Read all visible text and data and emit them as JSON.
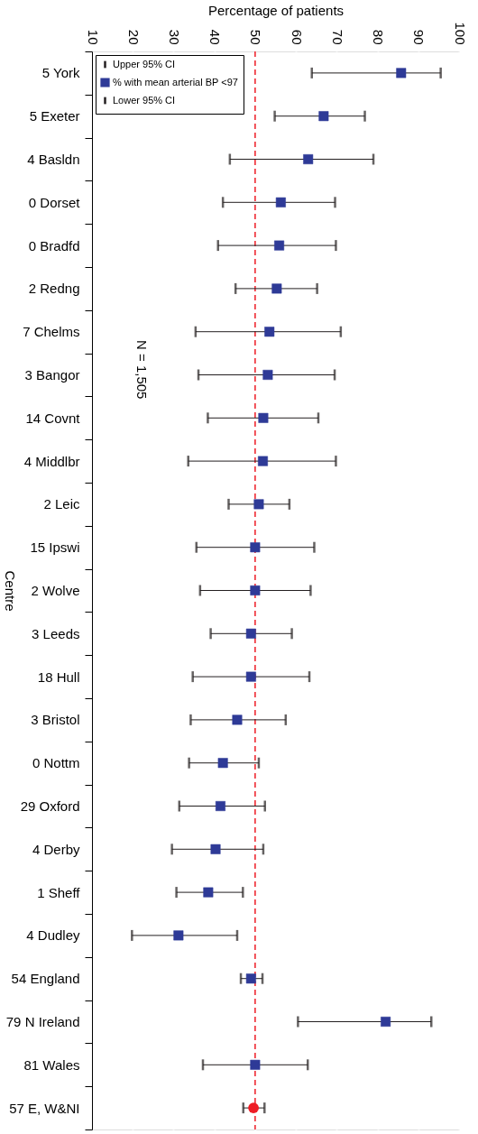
{
  "chart_data": {
    "type": "scatter",
    "orientation": "horizontal",
    "xlabel": "Percentage of patients",
    "ylabel": "Centre",
    "categories": [
      "5 York",
      "5 Exeter",
      "4 Basldn",
      "0 Dorset",
      "0 Bradfd",
      "2 Redng",
      "7 Chelms",
      "3 Bangor",
      "14 Covnt",
      "4 Middlbr",
      "2 Leic",
      "15 Ipswi",
      "2 Wolve",
      "3 Leeds",
      "18 Hull",
      "3 Bristol",
      "0 Nottm",
      "29 Oxford",
      "4 Derby",
      "1 Sheff",
      "4 Dudley",
      "54 England",
      "79 N Ireland",
      "81 Wales",
      "57 E, W&NI"
    ],
    "series": [
      {
        "name": "% with mean arterial BP <97",
        "color": "#2e3a97",
        "marker": "square",
        "values": [
          85.8,
          66.8,
          63.0,
          56.3,
          55.9,
          55.3,
          53.5,
          53.1,
          52.0,
          51.9,
          50.9,
          50.0,
          50.0,
          49.0,
          49.0,
          45.6,
          42.1,
          41.5,
          40.3,
          38.5,
          31.2,
          49.0,
          82.0,
          50.0,
          null
        ],
        "errors": [
          [
            63.9,
            95.5
          ],
          [
            54.8,
            76.9
          ],
          [
            43.8,
            79.0
          ],
          [
            42.1,
            69.6
          ],
          [
            40.9,
            69.8
          ],
          [
            45.2,
            65.2
          ],
          [
            35.4,
            71.0
          ],
          [
            36.1,
            69.5
          ],
          [
            38.4,
            65.5
          ],
          [
            33.6,
            69.8
          ],
          [
            43.5,
            58.4
          ],
          [
            35.6,
            64.5
          ],
          [
            36.5,
            63.6
          ],
          [
            39.1,
            59.0
          ],
          [
            34.7,
            63.3
          ],
          [
            34.2,
            57.5
          ],
          [
            33.8,
            50.9
          ],
          [
            31.4,
            52.4
          ],
          [
            29.6,
            52.0
          ],
          [
            30.7,
            47.0
          ],
          [
            19.8,
            45.6
          ],
          [
            46.5,
            51.8
          ],
          [
            60.5,
            93.2
          ],
          [
            37.2,
            62.9
          ],
          null
        ]
      },
      {
        "color": "#ee1c25",
        "marker": "circle",
        "values": [
          null,
          null,
          null,
          null,
          null,
          null,
          null,
          null,
          null,
          null,
          null,
          null,
          null,
          null,
          null,
          null,
          null,
          null,
          null,
          null,
          null,
          null,
          null,
          null,
          49.6
        ],
        "errors": [
          null,
          null,
          null,
          null,
          null,
          null,
          null,
          null,
          null,
          null,
          null,
          null,
          null,
          null,
          null,
          null,
          null,
          null,
          null,
          null,
          null,
          null,
          null,
          null,
          [
            47.1,
            52.3
          ]
        ]
      }
    ],
    "xlim": [
      10,
      100
    ],
    "xticks": [
      10,
      20,
      30,
      40,
      50,
      60,
      70,
      80,
      90,
      100
    ],
    "grid": "x",
    "legend": "top left",
    "ref_lines": [
      {
        "axis": "x",
        "value": 50,
        "color": "#ee1c25",
        "line_style": "dashed"
      }
    ],
    "annotations": [
      "Upper 95% CI",
      "Lower 95% CI",
      "N = 1,505"
    ]
  }
}
